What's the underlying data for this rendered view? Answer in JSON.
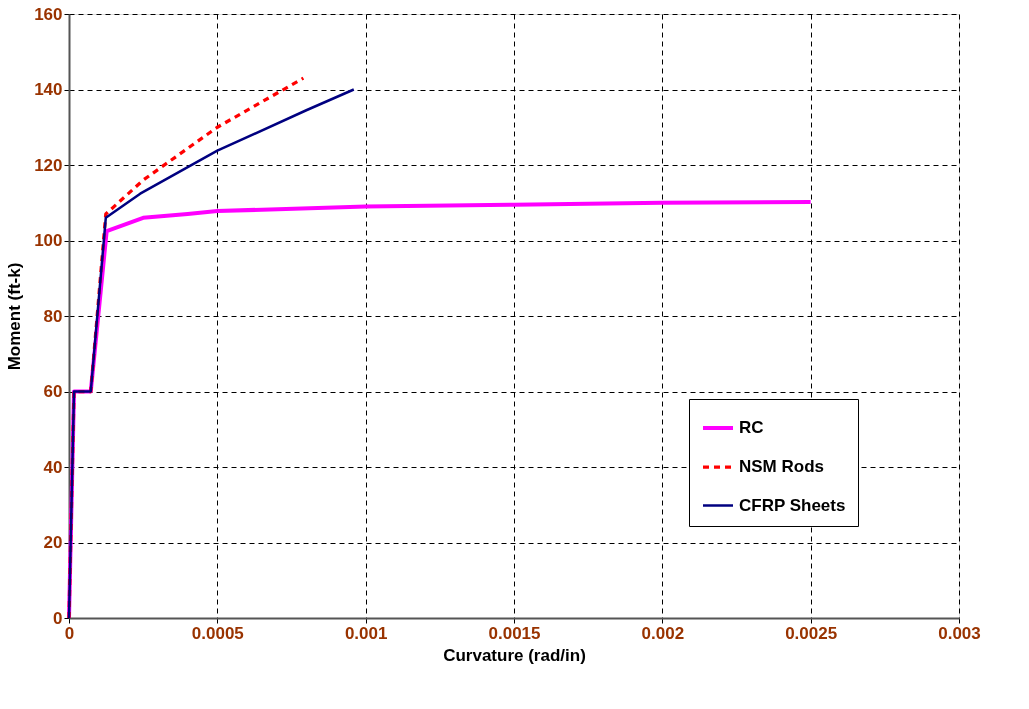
{
  "chart_data": {
    "type": "line",
    "xlabel": "Curvature (rad/in)",
    "ylabel": "Moment (ft-k)",
    "xlim": [
      0,
      0.003
    ],
    "xticks": [
      0,
      0.0005,
      0.001,
      0.0015,
      0.002,
      0.0025,
      0.003
    ],
    "ylim": [
      0,
      160
    ],
    "yticks": [
      0,
      20,
      40,
      60,
      80,
      100,
      120,
      140,
      160
    ],
    "grid": true,
    "legend": "bottom right",
    "marker": "none",
    "series": [
      {
        "name": "RC",
        "color": "#ff00ff",
        "line_style": "solid",
        "x": [
          0,
          1.69e-05,
          7.33e-05,
          0.000127,
          0.00025,
          0.0004,
          0.0005,
          0.001,
          0.0015,
          0.002,
          0.0025
        ],
        "values": [
          0,
          60,
          60,
          102.5,
          106,
          107,
          107.8,
          109,
          109.5,
          110,
          110.2
        ]
      },
      {
        "name": "NSM Rods",
        "color": "#ff0000",
        "line_style": "dashed",
        "x": [
          0,
          1.69e-05,
          7.33e-05,
          0.000124,
          0.00025,
          0.0005,
          0.00079
        ],
        "values": [
          0,
          60,
          60,
          107,
          116,
          130,
          143
        ]
      },
      {
        "name": "CFRP Sheets",
        "color": "#000080",
        "line_style": "solid",
        "x": [
          0,
          1.69e-05,
          7.33e-05,
          0.000124,
          0.00024,
          0.0005,
          0.0008,
          0.00096
        ],
        "values": [
          0,
          60,
          60,
          106,
          112.4,
          123.8,
          134.5,
          140
        ]
      }
    ]
  }
}
